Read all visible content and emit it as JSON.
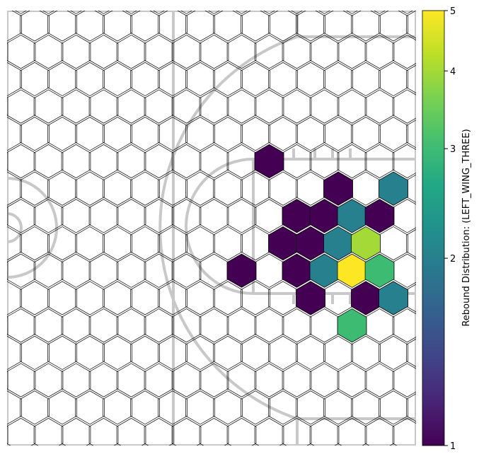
{
  "chart_data": {
    "type": "heatmap",
    "subtype": "hexbin",
    "background": "half basketball court outline",
    "colorbar": {
      "label": "Rebound Distribution: (LEFT_WING_THREE)",
      "scale": "log",
      "min": 1,
      "max": 5,
      "ticks": [
        1,
        2,
        3,
        4,
        5
      ],
      "tick_labels": [
        "1",
        "2",
        "3",
        "4",
        "5"
      ],
      "colormap": "viridis"
    },
    "cells": [
      {
        "col": 9,
        "row": 5,
        "value": 1
      },
      {
        "col": 12,
        "row": 6,
        "value": 1
      },
      {
        "col": 14,
        "row": 6,
        "value": 2
      },
      {
        "col": 10,
        "row": 7,
        "value": 1
      },
      {
        "col": 11,
        "row": 7,
        "value": 1
      },
      {
        "col": 12,
        "row": 7,
        "value": 2
      },
      {
        "col": 13,
        "row": 7,
        "value": 1
      },
      {
        "col": 10,
        "row": 8,
        "value": 1
      },
      {
        "col": 11,
        "row": 8,
        "value": 1
      },
      {
        "col": 12,
        "row": 8,
        "value": 2
      },
      {
        "col": 13,
        "row": 8,
        "value": 4
      },
      {
        "col": 8,
        "row": 9,
        "value": 1
      },
      {
        "col": 10,
        "row": 9,
        "value": 1
      },
      {
        "col": 11,
        "row": 9,
        "value": 2
      },
      {
        "col": 12,
        "row": 9,
        "value": 5
      },
      {
        "col": 13,
        "row": 9,
        "value": 3
      },
      {
        "col": 11,
        "row": 10,
        "value": 1
      },
      {
        "col": 13,
        "row": 10,
        "value": 1
      },
      {
        "col": 14,
        "row": 10,
        "value": 2
      },
      {
        "col": 12,
        "row": 11,
        "value": 3
      }
    ]
  },
  "colors": {
    "grid_stroke": "#000000",
    "court_line": "#c8c8c8"
  }
}
